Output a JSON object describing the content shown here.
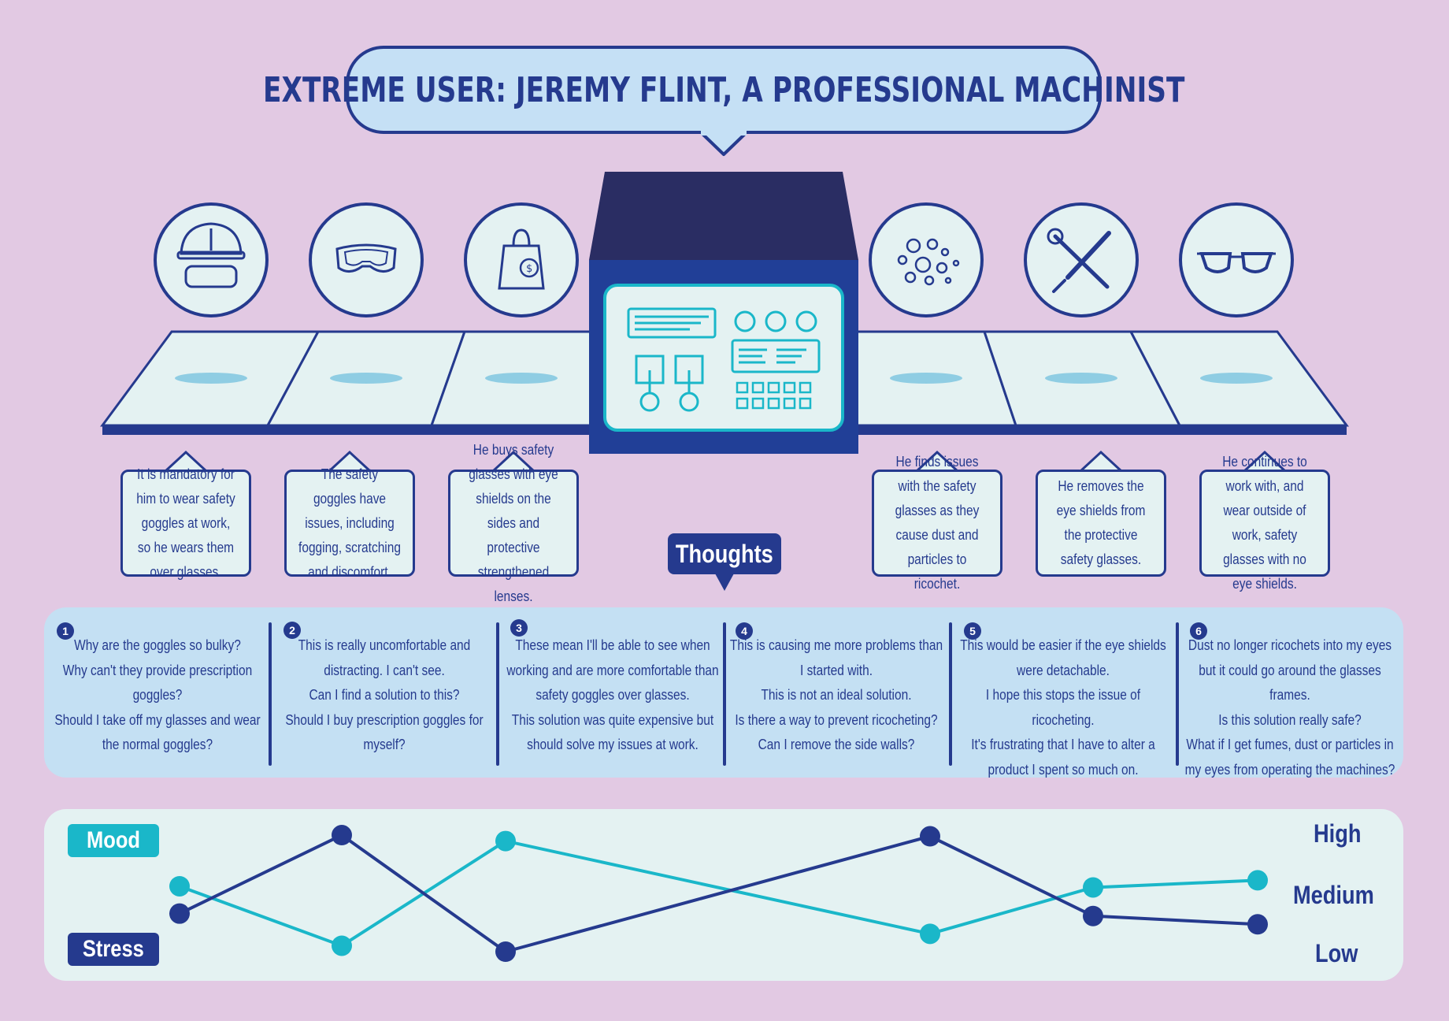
{
  "title": "Extreme user: Jeremy Flint, a professional machinist",
  "colors": {
    "background": "#e2c9e3",
    "navy": "#253a8e",
    "dark_navy": "#2a2d63",
    "teal": "#1ab7c9",
    "light_blue": "#c5e0f5",
    "pale": "#e4f2f2"
  },
  "stages": [
    {
      "icon": "hard-hat-goggles-icon",
      "caption": "It is mandatory for him to wear safety goggles at work, so he wears them over glasses."
    },
    {
      "icon": "safety-goggles-icon",
      "caption": "The safety goggles have issues, including fogging, scratching and discomfort."
    },
    {
      "icon": "shopping-bag-dollar-icon",
      "caption": "He buys safety glasses with eye shields on the sides and protective strengthened lenses."
    },
    {
      "icon": "particles-icon",
      "caption": "He finds issues with the safety glasses as they cause dust and particles to ricochet."
    },
    {
      "icon": "wrench-screwdriver-icon",
      "caption": "He removes the eye shields from the protective safety glasses."
    },
    {
      "icon": "glasses-icon",
      "caption": "He continues to work with, and wear outside of work, safety glasses with no eye shields."
    }
  ],
  "thoughts": {
    "label": "Thoughts",
    "items": [
      {
        "num": "1",
        "text": "Why are the goggles so bulky?\nWhy can't they provide prescription goggles?\nShould I take off my glasses and wear the normal goggles?"
      },
      {
        "num": "2",
        "text": "This is really uncomfortable and distracting. I can't see.\nCan I find a solution to this?\nShould I buy prescription goggles for myself?"
      },
      {
        "num": "3",
        "text": "These mean I'll be able to see when working and are more comfortable than safety goggles over glasses.\nThis solution was quite expensive but should solve my issues at work."
      },
      {
        "num": "4",
        "text": "This is causing me more problems than I started with.\nThis is not an ideal solution.\nIs there a way to prevent ricocheting?\nCan I remove the side walls?"
      },
      {
        "num": "5",
        "text": "This would be easier if the eye shields were detachable.\nI hope this stops the issue of ricocheting.\nIt's frustrating that I have to alter a product I spent so much on."
      },
      {
        "num": "6",
        "text": "Dust no longer ricochets into my eyes but it could go around the glasses frames.\nIs this solution really safe?\nWhat if I get fumes, dust or particles in my eyes from operating the machines?"
      }
    ]
  },
  "chart_data": {
    "type": "line",
    "x": [
      1,
      2,
      3,
      4,
      5,
      6
    ],
    "levels": [
      "Low",
      "Medium",
      "High"
    ],
    "ylim": [
      0,
      1
    ],
    "series": [
      {
        "name": "Mood",
        "color": "#1ab7c9",
        "values": [
          0.55,
          0.05,
          0.93,
          0.15,
          0.54,
          0.6
        ]
      },
      {
        "name": "Stress",
        "color": "#253a8e",
        "values": [
          0.32,
          0.98,
          0.0,
          0.97,
          0.3,
          0.23
        ]
      }
    ]
  }
}
